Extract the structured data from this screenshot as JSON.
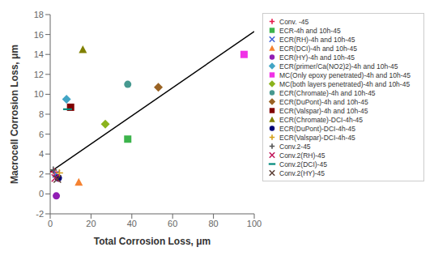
{
  "chart_data": {
    "type": "scatter",
    "xlabel": "Total Corrosion Loss, μm",
    "ylabel": "Macrocell Corrosion Loss, μm",
    "xlim": [
      0,
      100
    ],
    "ylim": [
      -2,
      18
    ],
    "xticks": [
      0,
      20,
      40,
      60,
      80,
      100
    ],
    "yticks": [
      -2,
      0,
      2,
      4,
      6,
      8,
      10,
      12,
      14,
      16,
      18
    ],
    "grid": false,
    "legend": "right",
    "series": [
      {
        "type": "line",
        "color": "#000000",
        "x": [
          0,
          100
        ],
        "values": [
          2.2,
          16.3
        ]
      },
      {
        "name": "Conv. -45",
        "marker": "plus",
        "color": "#e6194b",
        "x": [
          2.0
        ],
        "values": [
          2.2
        ]
      },
      {
        "name": "ECR-4h and 10h-45",
        "marker": "square",
        "color": "#3cb44b",
        "x": [
          38.0
        ],
        "values": [
          5.5
        ]
      },
      {
        "name": "ECR(RH)-4h and 10h-45",
        "marker": "x",
        "color": "#4363d8",
        "x": [
          3.0
        ],
        "values": [
          2.0
        ]
      },
      {
        "name": "ECR(DCI)-4h and 10h-45",
        "marker": "triangle",
        "color": "#f58231",
        "x": [
          14.0
        ],
        "values": [
          1.2
        ]
      },
      {
        "name": "ECR(HY)-4h and 10h-45",
        "marker": "circle",
        "color": "#911eb4",
        "x": [
          3.0
        ],
        "values": [
          -0.2
        ]
      },
      {
        "name": "ECR(primer/Ca(NO2)2)-4h and 10h-45",
        "marker": "diamond",
        "color": "#42a5c5",
        "x": [
          8.0
        ],
        "values": [
          9.5
        ]
      },
      {
        "name": "MC(Only epoxy penetrated)-4h and 10h-45",
        "marker": "square",
        "color": "#f032e6",
        "x": [
          95.0
        ],
        "values": [
          14.0
        ]
      },
      {
        "name": "MC(both layers penetrated)-4h and 10h-45",
        "marker": "diamond",
        "color": "#8bb31d",
        "x": [
          27.0
        ],
        "values": [
          7.0
        ]
      },
      {
        "name": "ECR(Chromate)-4h and 10h-45",
        "marker": "circle",
        "color": "#469990",
        "x": [
          38.0
        ],
        "values": [
          11.0
        ]
      },
      {
        "name": "ECR(DuPont)-4h and 10h-45",
        "marker": "diamond",
        "color": "#9a6324",
        "x": [
          53.0
        ],
        "values": [
          10.7
        ]
      },
      {
        "name": "ECR(Valspar)-4h and 10h-45",
        "marker": "square",
        "color": "#800000",
        "x": [
          10.0
        ],
        "values": [
          8.7
        ]
      },
      {
        "name": "ECR(Chromate)-DCI-4h-45",
        "marker": "triangle",
        "color": "#808000",
        "x": [
          16.0
        ],
        "values": [
          14.5
        ]
      },
      {
        "name": "ECR(DuPont)-DCI-4h-45",
        "marker": "circle",
        "color": "#000075",
        "x": [
          4.0
        ],
        "values": [
          1.6
        ]
      },
      {
        "name": "ECR(Valspar)-DCI-4h-45",
        "marker": "plus",
        "color": "#d4a017",
        "x": [
          4.5
        ],
        "values": [
          2.1
        ]
      },
      {
        "name": "Conv.2-45",
        "marker": "plus",
        "color": "#555555",
        "x": [
          1.5
        ],
        "values": [
          2.4
        ]
      },
      {
        "name": "Conv.2(RH)-45",
        "marker": "x",
        "color": "#c2185b",
        "x": [
          2.5
        ],
        "values": [
          1.6
        ]
      },
      {
        "name": "Conv.2(DCI)-45",
        "marker": "minus",
        "color": "#00897b",
        "x": [
          8.5
        ],
        "values": [
          8.5
        ]
      },
      {
        "name": "Conv.2(HY)-45",
        "marker": "x",
        "color": "#5d4037",
        "x": [
          3.5
        ],
        "values": [
          1.5
        ]
      }
    ]
  }
}
